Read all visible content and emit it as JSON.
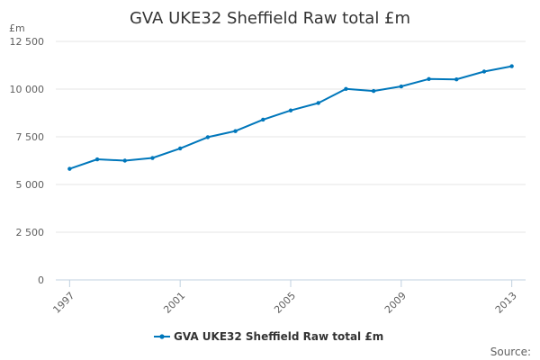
{
  "chart_data": {
    "type": "line",
    "title": "GVA UKE32 Sheffield Raw total £m",
    "ylabel": "£m",
    "xlabel": "",
    "ylim": [
      0,
      12500
    ],
    "y_ticks": [
      0,
      2500,
      5000,
      7500,
      10000,
      12500
    ],
    "y_tick_labels": [
      "0",
      "2 500",
      "5 000",
      "7 500",
      "10 000",
      "12 500"
    ],
    "x_ticks": [
      1997,
      2001,
      2005,
      2009,
      2013
    ],
    "x_tick_labels": [
      "1997",
      "2001",
      "2005",
      "2009",
      "2013"
    ],
    "x": [
      1997,
      1998,
      1999,
      2000,
      2001,
      2002,
      2003,
      2004,
      2005,
      2006,
      2007,
      2008,
      2009,
      2010,
      2011,
      2012,
      2013
    ],
    "series": [
      {
        "name": "GVA UKE32 Sheffield Raw total £m",
        "values": [
          5820,
          6320,
          6250,
          6390,
          6890,
          7480,
          7800,
          8400,
          8880,
          9270,
          10010,
          9900,
          10140,
          10530,
          10510,
          10920,
          11200
        ],
        "color": "#0077bb"
      }
    ],
    "grid": true,
    "legend_position": "bottom-center",
    "source_label": "Source:"
  }
}
